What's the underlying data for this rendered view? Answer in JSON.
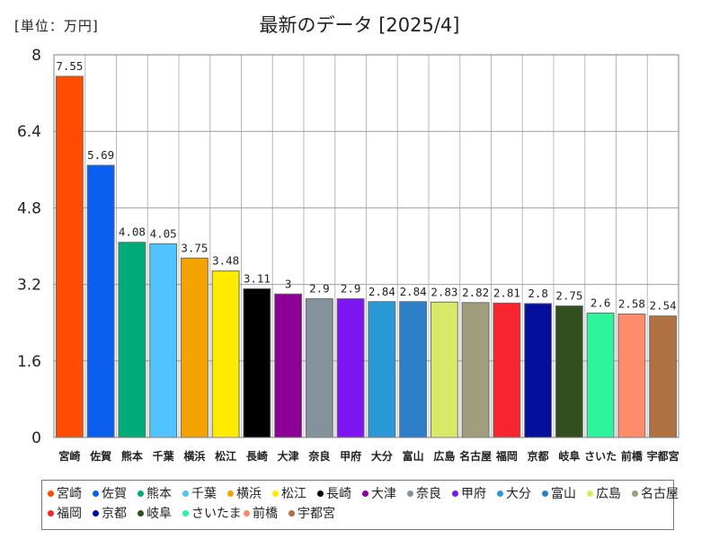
{
  "header": {
    "unit_label": "[単位：万円]",
    "title": "最新のデータ [2025/4]"
  },
  "chart_data": {
    "type": "bar",
    "categories": [
      "宮崎",
      "佐賀",
      "熊本",
      "千葉",
      "横浜",
      "松江",
      "長崎",
      "大津",
      "奈良",
      "甲府",
      "大分",
      "富山",
      "広島",
      "名古屋",
      "福岡",
      "京都",
      "岐阜",
      "さいたま",
      "前橋",
      "宇都宮"
    ],
    "axis_categories": [
      "宮崎",
      "佐賀",
      "熊本",
      "千葉",
      "横浜",
      "松江",
      "長崎",
      "大津",
      "奈良",
      "甲府",
      "大分",
      "富山",
      "広島",
      "名古屋",
      "福岡",
      "京都",
      "岐阜",
      "さいた",
      "前橋",
      "宇都宮"
    ],
    "values": [
      7.55,
      5.69,
      4.08,
      4.05,
      3.75,
      3.48,
      3.11,
      3,
      2.9,
      2.9,
      2.84,
      2.84,
      2.83,
      2.82,
      2.81,
      2.8,
      2.75,
      2.6,
      2.58,
      2.54
    ],
    "value_labels": [
      "7.55",
      "5.69",
      "4.08",
      "4.05",
      "3.75",
      "3.48",
      "3.11",
      "3",
      "2.9",
      "2.9",
      "2.84",
      "2.84",
      "2.83",
      "2.82",
      "2.81",
      "2.8",
      "2.75",
      "2.6",
      "2.58",
      "2.54"
    ],
    "colors": [
      "#ff4c00",
      "#0a5ef0",
      "#00ab7a",
      "#4fc4ff",
      "#f5a300",
      "#ffeb00",
      "#000000",
      "#8c0096",
      "#86929b",
      "#7d16f2",
      "#2a9ad6",
      "#2e7fca",
      "#d8e968",
      "#a19e7d",
      "#f8252e",
      "#04109b",
      "#324f20",
      "#2ef59b",
      "#fe8b69",
      "#b07143"
    ],
    "ylim": [
      0,
      8
    ],
    "yticks": [
      "0",
      "1.6",
      "3.2",
      "4.8",
      "6.4",
      "8"
    ],
    "tick_values": [
      0,
      1.6,
      3.2,
      4.8,
      6.4,
      8
    ],
    "grid": true,
    "legend": "bottom"
  }
}
